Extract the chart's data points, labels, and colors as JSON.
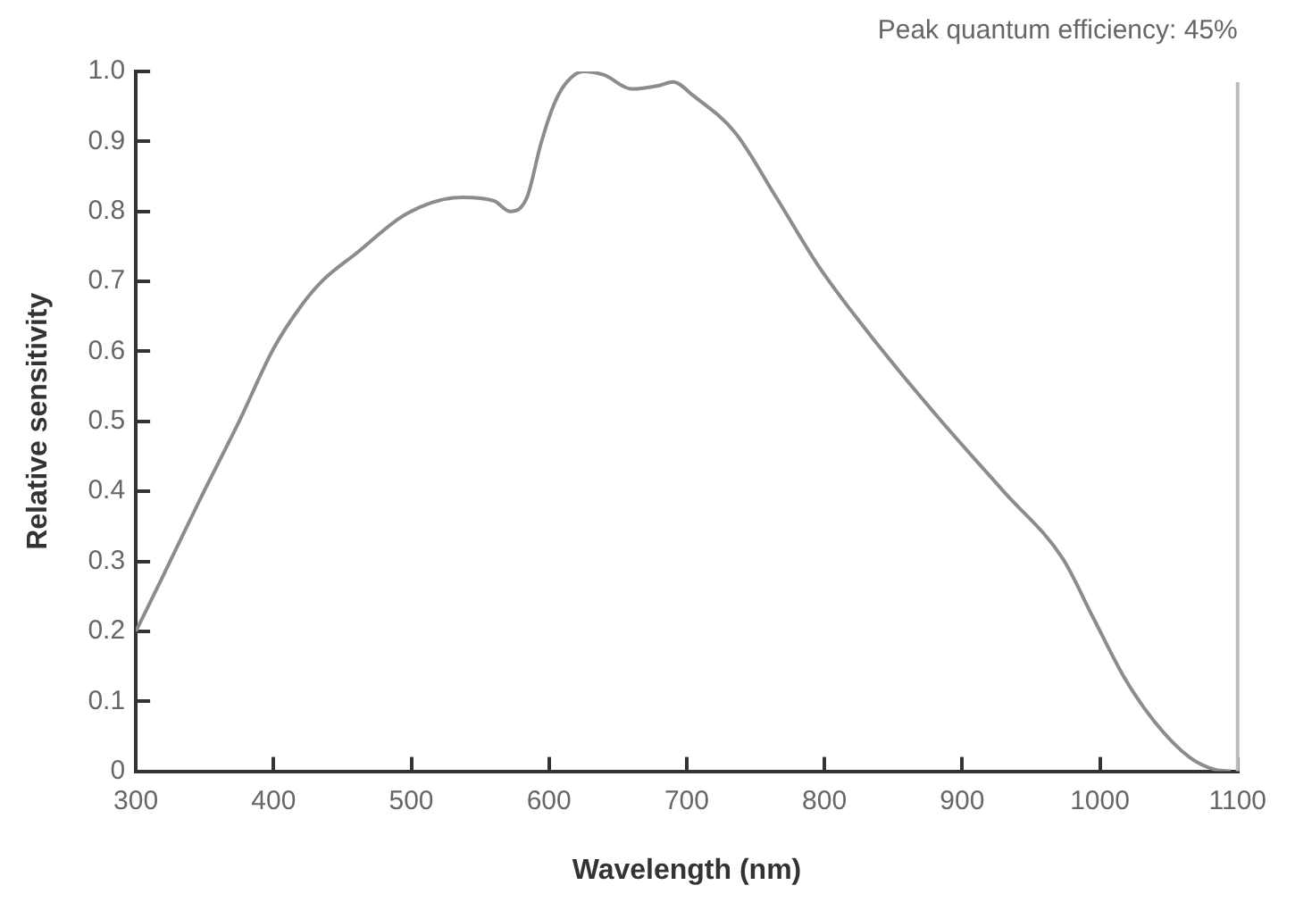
{
  "chart_data": {
    "type": "line",
    "xlabel": "Wavelength (nm)",
    "ylabel": "Relative sensitivity",
    "annotations": [
      "Peak quantum efficiency: 45%"
    ],
    "x": [
      300,
      320,
      347,
      375,
      400,
      420,
      435,
      460,
      497,
      537,
      560,
      572,
      584,
      594,
      603,
      611,
      625,
      640,
      660,
      680,
      690,
      705,
      735,
      765,
      797,
      841,
      885,
      930,
      973,
      995,
      1018,
      1040,
      1065,
      1084,
      1095
    ],
    "series": [
      {
        "color": "#8c8c8c",
        "values": [
          0.2,
          0.28,
          0.39,
          0.5,
          0.604,
          0.665,
          0.7,
          0.74,
          0.797,
          0.82,
          0.815,
          0.8,
          0.82,
          0.896,
          0.95,
          0.98,
          1.0,
          0.995,
          0.975,
          0.98,
          0.985,
          0.965,
          0.913,
          0.82,
          0.718,
          0.604,
          0.5,
          0.4,
          0.304,
          0.22,
          0.133,
          0.07,
          0.02,
          0.002,
          0
        ]
      }
    ],
    "xlim": [
      300,
      1100
    ],
    "xticks": [
      300,
      400,
      500,
      600,
      700,
      800,
      900,
      1000,
      1100
    ],
    "ylim": [
      0,
      1
    ],
    "yticks": [
      0,
      0.1,
      0.2,
      0.3,
      0.4,
      0.5,
      0.6,
      0.7,
      0.8,
      0.9,
      {
        "value": 1,
        "label": "1.0"
      }
    ],
    "grid": false,
    "legend": false,
    "marker": "none",
    "line_style": "solid"
  }
}
